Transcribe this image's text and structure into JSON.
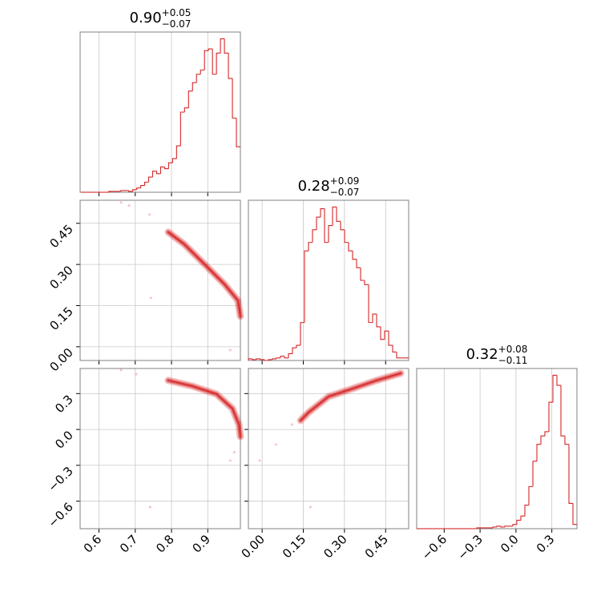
{
  "chart_data": {
    "type": "corner",
    "color": "#d62728",
    "grid": true,
    "parameters": [
      {
        "title": {
          "value": "0.90",
          "upper": "+0.05",
          "lower": "−0.07"
        },
        "lim": [
          0.548,
          0.99
        ],
        "ticks": [
          0.6,
          0.7,
          0.8,
          0.9
        ],
        "hist": {
          "ylim": [
            0,
            190
          ],
          "bins": [
            0.55,
            0.561,
            0.572,
            0.583,
            0.594,
            0.605,
            0.616,
            0.627,
            0.638,
            0.649,
            0.66,
            0.671,
            0.682,
            0.693,
            0.704,
            0.715,
            0.726,
            0.737,
            0.748,
            0.759,
            0.77,
            0.781,
            0.792,
            0.803,
            0.814,
            0.825,
            0.836,
            0.847,
            0.858,
            0.869,
            0.88,
            0.891,
            0.902,
            0.913,
            0.924,
            0.935,
            0.946,
            0.957,
            0.968,
            0.979,
            0.99
          ],
          "values": [
            0,
            0,
            0,
            0,
            0,
            0,
            0,
            1,
            1,
            1,
            2,
            2,
            1,
            3,
            5,
            8,
            12,
            18,
            25,
            22,
            30,
            28,
            35,
            40,
            55,
            95,
            100,
            120,
            130,
            140,
            145,
            168,
            170,
            140,
            165,
            182,
            165,
            135,
            88,
            54
          ]
        }
      },
      {
        "title": {
          "value": "0.28",
          "upper": "+0.09",
          "lower": "−0.07"
        },
        "lim": [
          -0.05,
          0.534
        ],
        "ticks": [
          {
            "value": 0,
            "label": "0.00"
          },
          0.15,
          {
            "value": 0.3,
            "label": "0.30"
          },
          0.45
        ],
        "hist": {
          "ylim": [
            0,
            190
          ],
          "bins": [
            -0.05,
            -0.0354,
            -0.0208,
            -0.0062,
            0.0084,
            0.023,
            0.0376,
            0.0522,
            0.0668,
            0.0814,
            0.096,
            0.1106,
            0.1252,
            0.1398,
            0.1544,
            0.169,
            0.1836,
            0.1982,
            0.2128,
            0.2274,
            0.242,
            0.2566,
            0.2712,
            0.2858,
            0.3004,
            0.315,
            0.3296,
            0.3442,
            0.3588,
            0.3734,
            0.388,
            0.4026,
            0.4172,
            0.4318,
            0.4464,
            0.461,
            0.4756,
            0.4902,
            0.5048,
            0.5194,
            0.534
          ],
          "values": [
            2,
            1,
            2,
            1,
            0,
            1,
            2,
            3,
            5,
            3,
            8,
            15,
            18,
            45,
            130,
            140,
            155,
            170,
            180,
            140,
            160,
            182,
            165,
            155,
            140,
            130,
            120,
            110,
            95,
            90,
            45,
            55,
            40,
            25,
            35,
            18,
            10,
            3,
            3,
            3
          ]
        }
      },
      {
        "title": {
          "value": "0.32",
          "upper": "+0.08",
          "lower": "−0.11"
        },
        "lim": [
          -0.83,
          0.51
        ],
        "ticks": [
          {
            "value": -0.6,
            "label": "−0.6"
          },
          {
            "value": -0.3,
            "label": "−0.3"
          },
          {
            "value": 0,
            "label": "0.0"
          },
          0.3
        ],
        "hist": {
          "ylim": [
            0,
            190
          ],
          "bins": [
            -0.83,
            -0.7965,
            -0.763,
            -0.7295,
            -0.696,
            -0.6625,
            -0.629,
            -0.5955,
            -0.562,
            -0.5285,
            -0.495,
            -0.4615,
            -0.428,
            -0.3945,
            -0.361,
            -0.3275,
            -0.294,
            -0.2605,
            -0.227,
            -0.1935,
            -0.16,
            -0.1265,
            -0.093,
            -0.0595,
            -0.026,
            0.0075,
            0.041,
            0.0745,
            0.108,
            0.1415,
            0.175,
            0.2085,
            0.242,
            0.2755,
            0.309,
            0.3425,
            0.376,
            0.4095,
            0.443,
            0.4765,
            0.51
          ],
          "values": [
            0,
            0,
            0,
            0,
            0,
            0,
            0,
            0,
            0,
            0,
            0,
            0,
            0,
            0,
            0,
            1,
            1,
            1,
            1,
            2,
            3,
            2,
            3,
            3,
            5,
            10,
            15,
            28,
            50,
            80,
            100,
            110,
            115,
            150,
            182,
            170,
            110,
            100,
            30,
            5
          ]
        }
      }
    ],
    "pairs": [
      {
        "contour": {
          "x": [
            0.791,
            0.835,
            0.891,
            0.946,
            0.983,
            0.99
          ],
          "y": [
            0.418,
            0.374,
            0.301,
            0.228,
            0.169,
            0.111
          ]
        },
        "points": {
          "x": [
            0.661,
            0.683,
            0.739,
            0.743,
            0.962
          ],
          "y": [
            0.526,
            0.515,
            0.482,
            0.178,
            -0.012
          ]
        }
      },
      {
        "contour": {
          "x": [
            0.791,
            0.857,
            0.924,
            0.968,
            0.986,
            0.99
          ],
          "y": [
            0.41,
            0.363,
            0.296,
            0.175,
            0.041,
            -0.06
          ]
        },
        "points": {
          "x": [
            0.661,
            0.703,
            0.741,
            0.962,
            0.973
          ],
          "y": [
            0.497,
            0.463,
            -0.649,
            -0.26,
            -0.19
          ]
        }
      },
      {
        "contour": {
          "x": [
            0.14,
            0.169,
            0.242,
            0.33,
            0.417,
            0.505
          ],
          "y": [
            0.075,
            0.142,
            0.275,
            0.342,
            0.41,
            0.47
          ]
        },
        "points": {
          "x": [
            -0.009,
            0.05,
            0.176,
            0.109
          ],
          "y": [
            -0.26,
            -0.126,
            -0.649,
            0.041
          ]
        }
      }
    ]
  }
}
